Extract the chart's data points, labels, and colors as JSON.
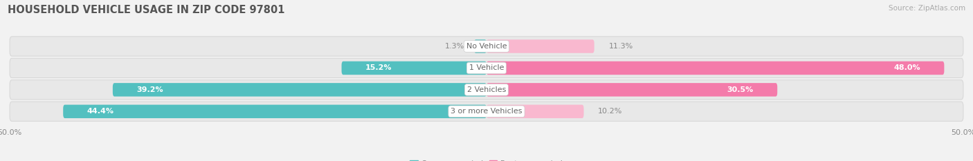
{
  "title": "HOUSEHOLD VEHICLE USAGE IN ZIP CODE 97801",
  "source": "Source: ZipAtlas.com",
  "categories": [
    "No Vehicle",
    "1 Vehicle",
    "2 Vehicles",
    "3 or more Vehicles"
  ],
  "owner_values": [
    1.3,
    15.2,
    39.2,
    44.4
  ],
  "renter_values": [
    11.3,
    48.0,
    30.5,
    10.2
  ],
  "owner_color": "#53C0C0",
  "renter_color": "#F47BAA",
  "renter_light_color": "#F9B8CF",
  "bg_color": "#f2f2f2",
  "bar_bg_color": "#e8e8e8",
  "bar_bg_outline": "#d8d8d8",
  "xlim": 50.0,
  "title_fontsize": 10.5,
  "label_fontsize": 8,
  "tick_fontsize": 8,
  "legend_fontsize": 8,
  "source_fontsize": 7.5,
  "bar_height": 0.62,
  "figsize": [
    14.06,
    2.33
  ],
  "dpi": 100
}
